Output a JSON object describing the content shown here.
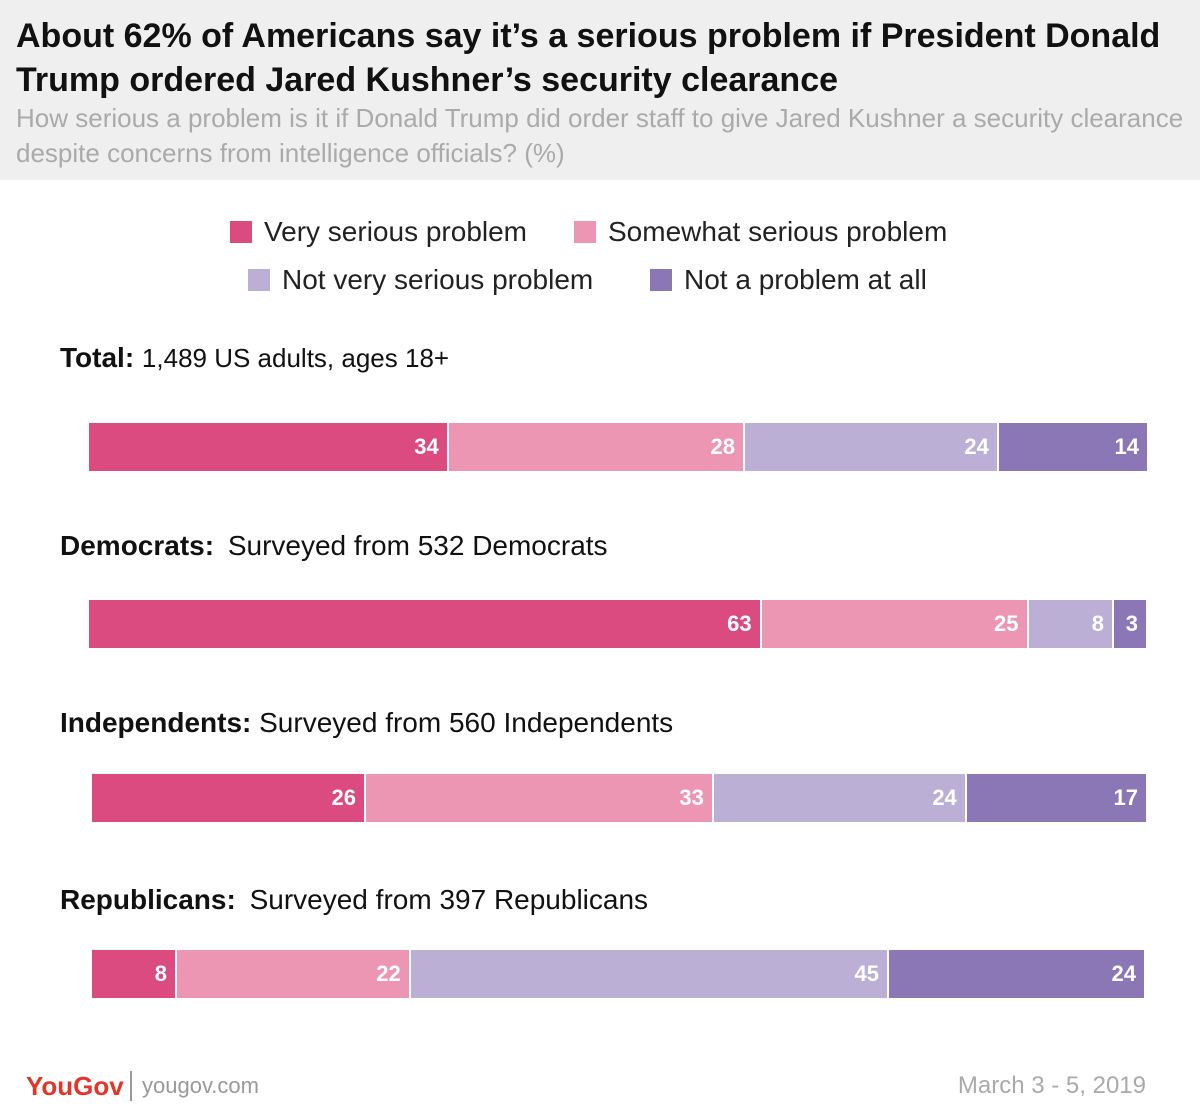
{
  "title": "About 62% of Americans say it’s a serious problem if President Donald Trump ordered Jared Kushner’s security clearance",
  "subtitle": "How serious a problem is it if Donald Trump did order staff to give Jared Kushner a security clearance despite concerns from intelligence officials? (%)",
  "legend": [
    {
      "label": "Very serious problem",
      "color": "#dc4b7f"
    },
    {
      "label": "Somewhat serious problem",
      "color": "#ec96b3"
    },
    {
      "label": "Not very serious problem",
      "color": "#bcafd6"
    },
    {
      "label": "Not a problem at all",
      "color": "#8b77b5"
    }
  ],
  "chart_data": {
    "type": "bar",
    "orientation": "horizontal",
    "stacked": true,
    "categories": [
      "Total",
      "Democrats",
      "Independents",
      "Republicans"
    ],
    "category_notes": [
      "1,489 US adults, ages 18+",
      "Surveyed from 532 Democrats",
      "Surveyed from 560 Independents",
      "Surveyed from 397 Republicans"
    ],
    "series": [
      {
        "name": "Very serious problem",
        "values": [
          34,
          63,
          26,
          8
        ],
        "color": "#dc4b7f"
      },
      {
        "name": "Somewhat serious problem",
        "values": [
          28,
          25,
          33,
          22
        ],
        "color": "#ec96b3"
      },
      {
        "name": "Not very serious problem",
        "values": [
          24,
          8,
          24,
          45
        ],
        "color": "#bcafd6"
      },
      {
        "name": "Not a problem at all",
        "values": [
          14,
          3,
          17,
          24
        ],
        "color": "#8b77b5"
      }
    ],
    "title": "About 62% of Americans say it’s a serious problem if President Donald Trump ordered Jared Kushner’s security clearance",
    "xlabel": "",
    "ylabel": "",
    "legend_position": "top",
    "grid": false
  },
  "footer": {
    "brand": "YouGov",
    "url": "yougov.com",
    "date": "March 3 - 5, 2019"
  }
}
